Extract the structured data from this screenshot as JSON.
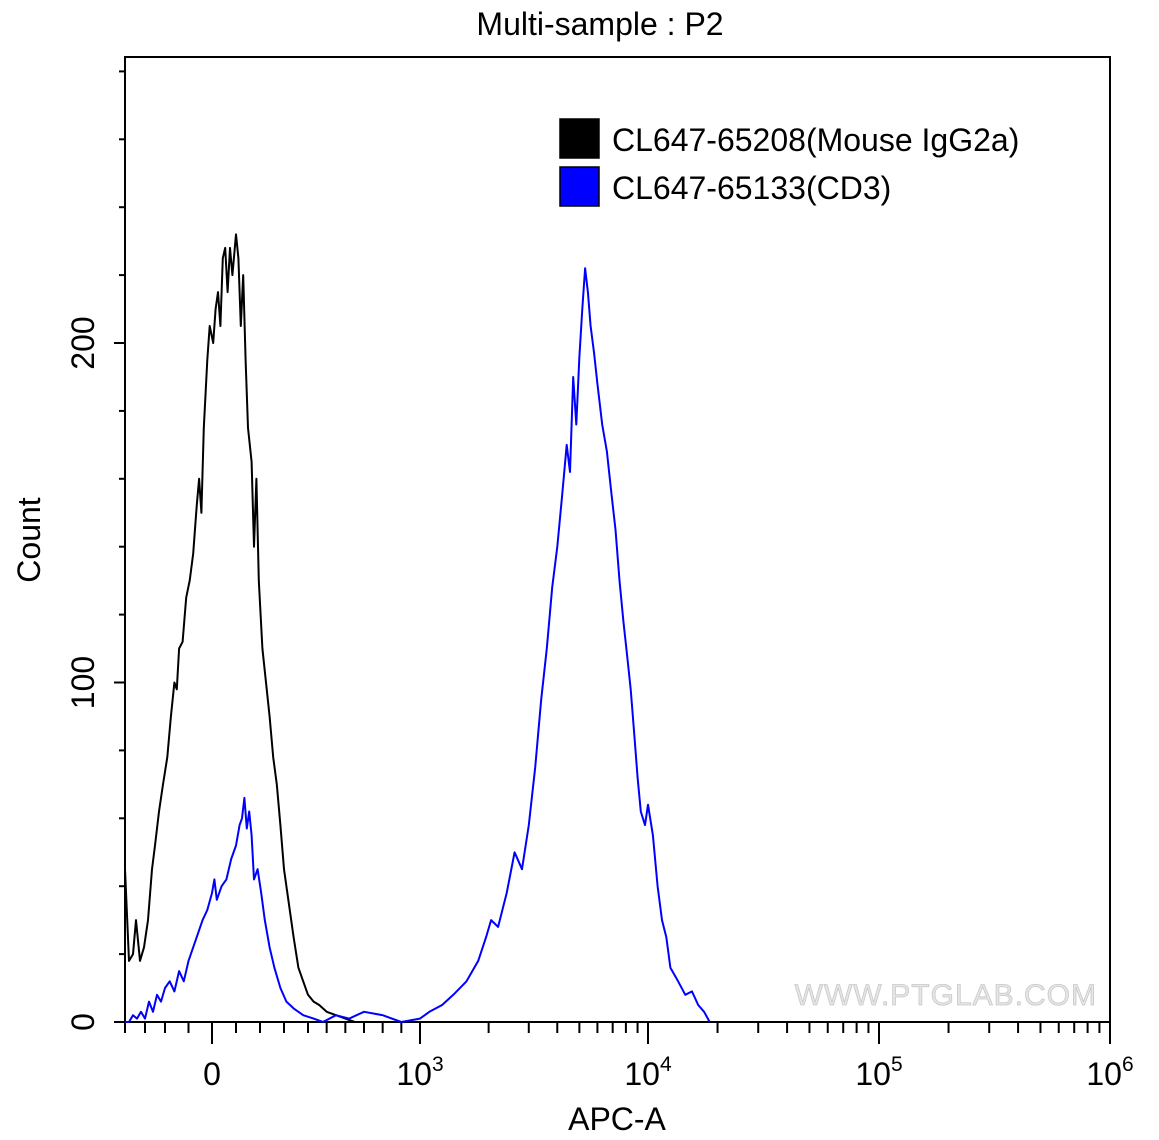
{
  "chart_data": {
    "type": "histogram",
    "title": "Multi-sample : P2",
    "xlabel": "APC-A",
    "ylabel": "Count",
    "x_scale": "biexponential",
    "xlim": [
      -400,
      1000000
    ],
    "ylim": [
      0,
      290
    ],
    "x_tick_labels": [
      {
        "value": 0,
        "base": "0",
        "exp": ""
      },
      {
        "value": 1000,
        "base": "10",
        "exp": "3"
      },
      {
        "value": 10000,
        "base": "10",
        "exp": "4"
      },
      {
        "value": 100000,
        "base": "10",
        "exp": "5"
      },
      {
        "value": 1000000,
        "base": "10",
        "exp": "6"
      }
    ],
    "y_tick_labels": [
      {
        "value": 0,
        "label": "0"
      },
      {
        "value": 100,
        "label": "100"
      },
      {
        "value": 200,
        "label": "200"
      }
    ],
    "legend_position": "top-right",
    "series": [
      {
        "name": "CL647-65208(Mouse IgG2a)",
        "color": "#000000",
        "points": [
          [
            -400,
            45
          ],
          [
            -380,
            18
          ],
          [
            -360,
            20
          ],
          [
            -345,
            30
          ],
          [
            -325,
            18
          ],
          [
            -305,
            22
          ],
          [
            -285,
            30
          ],
          [
            -265,
            45
          ],
          [
            -250,
            52
          ],
          [
            -230,
            62
          ],
          [
            -210,
            70
          ],
          [
            -190,
            78
          ],
          [
            -175,
            90
          ],
          [
            -160,
            100
          ],
          [
            -150,
            98
          ],
          [
            -140,
            110
          ],
          [
            -125,
            112
          ],
          [
            -110,
            125
          ],
          [
            -95,
            130
          ],
          [
            -80,
            138
          ],
          [
            -65,
            152
          ],
          [
            -55,
            160
          ],
          [
            -45,
            150
          ],
          [
            -35,
            175
          ],
          [
            -20,
            195
          ],
          [
            -10,
            205
          ],
          [
            5,
            200
          ],
          [
            15,
            210
          ],
          [
            25,
            215
          ],
          [
            35,
            205
          ],
          [
            45,
            225
          ],
          [
            55,
            228
          ],
          [
            65,
            215
          ],
          [
            75,
            228
          ],
          [
            85,
            220
          ],
          [
            100,
            232
          ],
          [
            110,
            225
          ],
          [
            120,
            205
          ],
          [
            130,
            220
          ],
          [
            140,
            195
          ],
          [
            150,
            175
          ],
          [
            165,
            165
          ],
          [
            175,
            140
          ],
          [
            185,
            160
          ],
          [
            195,
            130
          ],
          [
            210,
            110
          ],
          [
            225,
            100
          ],
          [
            240,
            90
          ],
          [
            255,
            78
          ],
          [
            270,
            70
          ],
          [
            285,
            58
          ],
          [
            300,
            45
          ],
          [
            320,
            35
          ],
          [
            340,
            25
          ],
          [
            360,
            16
          ],
          [
            380,
            12
          ],
          [
            400,
            8
          ],
          [
            430,
            6
          ],
          [
            460,
            5
          ],
          [
            500,
            3
          ],
          [
            550,
            2
          ],
          [
            600,
            1
          ],
          [
            650,
            0
          ],
          [
            700,
            0
          ]
        ]
      },
      {
        "name": "CL647-65133(CD3)",
        "color": "#0000ff",
        "points": [
          [
            -400,
            0
          ],
          [
            -380,
            0
          ],
          [
            -360,
            2
          ],
          [
            -340,
            1
          ],
          [
            -320,
            3
          ],
          [
            -300,
            1
          ],
          [
            -280,
            6
          ],
          [
            -260,
            3
          ],
          [
            -240,
            8
          ],
          [
            -220,
            6
          ],
          [
            -200,
            10
          ],
          [
            -180,
            12
          ],
          [
            -160,
            9
          ],
          [
            -140,
            15
          ],
          [
            -120,
            12
          ],
          [
            -100,
            18
          ],
          [
            -80,
            22
          ],
          [
            -60,
            26
          ],
          [
            -40,
            30
          ],
          [
            -20,
            33
          ],
          [
            0,
            38
          ],
          [
            10,
            42
          ],
          [
            20,
            36
          ],
          [
            40,
            40
          ],
          [
            60,
            42
          ],
          [
            80,
            48
          ],
          [
            100,
            52
          ],
          [
            115,
            58
          ],
          [
            125,
            60
          ],
          [
            135,
            66
          ],
          [
            145,
            57
          ],
          [
            155,
            62
          ],
          [
            165,
            55
          ],
          [
            175,
            42
          ],
          [
            190,
            45
          ],
          [
            205,
            38
          ],
          [
            220,
            30
          ],
          [
            240,
            22
          ],
          [
            260,
            16
          ],
          [
            285,
            10
          ],
          [
            310,
            6
          ],
          [
            340,
            4
          ],
          [
            380,
            2
          ],
          [
            430,
            1
          ],
          [
            480,
            0
          ],
          [
            550,
            2
          ],
          [
            620,
            1
          ],
          [
            700,
            3
          ],
          [
            800,
            2
          ],
          [
            900,
            0
          ],
          [
            1000,
            1
          ],
          [
            1100,
            3
          ],
          [
            1250,
            5
          ],
          [
            1400,
            8
          ],
          [
            1600,
            12
          ],
          [
            1800,
            18
          ],
          [
            1950,
            25
          ],
          [
            2050,
            30
          ],
          [
            2200,
            28
          ],
          [
            2400,
            38
          ],
          [
            2600,
            50
          ],
          [
            2800,
            45
          ],
          [
            3000,
            58
          ],
          [
            3200,
            75
          ],
          [
            3400,
            95
          ],
          [
            3600,
            110
          ],
          [
            3800,
            128
          ],
          [
            4000,
            140
          ],
          [
            4200,
            155
          ],
          [
            4400,
            170
          ],
          [
            4550,
            162
          ],
          [
            4700,
            190
          ],
          [
            4850,
            176
          ],
          [
            5000,
            196
          ],
          [
            5150,
            210
          ],
          [
            5300,
            222
          ],
          [
            5450,
            215
          ],
          [
            5600,
            205
          ],
          [
            5800,
            197
          ],
          [
            6000,
            188
          ],
          [
            6300,
            176
          ],
          [
            6600,
            168
          ],
          [
            6900,
            156
          ],
          [
            7200,
            145
          ],
          [
            7500,
            130
          ],
          [
            7800,
            118
          ],
          [
            8100,
            108
          ],
          [
            8400,
            98
          ],
          [
            8700,
            85
          ],
          [
            9000,
            72
          ],
          [
            9300,
            62
          ],
          [
            9700,
            58
          ],
          [
            10000,
            64
          ],
          [
            10500,
            55
          ],
          [
            11000,
            40
          ],
          [
            11500,
            30
          ],
          [
            12000,
            25
          ],
          [
            12500,
            16
          ],
          [
            13500,
            12
          ],
          [
            14500,
            8
          ],
          [
            15500,
            9
          ],
          [
            16500,
            5
          ],
          [
            17500,
            3
          ],
          [
            18500,
            0
          ]
        ]
      }
    ]
  },
  "watermark": "WWW.PTGLAB.COM"
}
